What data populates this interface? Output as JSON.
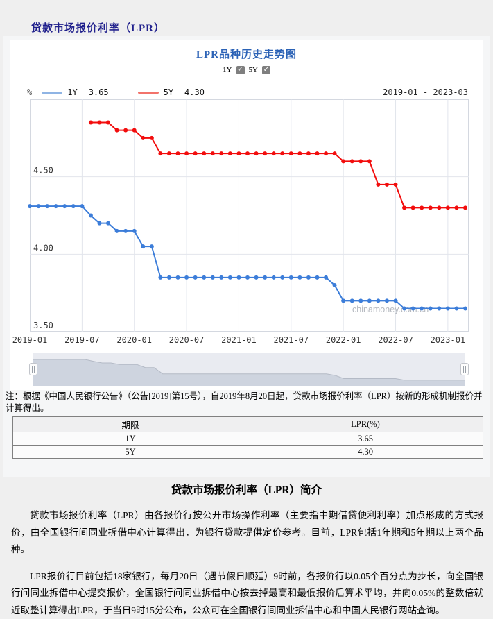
{
  "page": {
    "title": "贷款市场报价利率（LPR）"
  },
  "chart": {
    "title": "LPR品种历史走势图",
    "controls": [
      {
        "label": "1Y",
        "checked": true,
        "check_glyph": "✓"
      },
      {
        "label": "5Y",
        "checked": true,
        "check_glyph": "✓"
      }
    ],
    "unit_label": "%",
    "date_range": "2019-01 - 2023-03",
    "legend": [
      {
        "name": "1Y",
        "value": "3.65",
        "swatch_color": "#8FB4E4"
      },
      {
        "name": "5Y",
        "value": "4.30",
        "swatch_color": "#F2736B"
      }
    ],
    "watermark": "chinamoney.com.cn"
  },
  "chart_data": {
    "type": "line",
    "title": "LPR品种历史走势图",
    "x_unit": "month",
    "x_start": "2019-01",
    "x_end": "2023-03",
    "x_tick_labels": [
      "2019-01",
      "2019-07",
      "2020-01",
      "2020-07",
      "2021-01",
      "2021-07",
      "2022-01",
      "2022-07",
      "2023-01"
    ],
    "x_tick_month_index": [
      0,
      6,
      12,
      18,
      24,
      30,
      36,
      42,
      48
    ],
    "total_months": 51,
    "ylim": [
      3.5,
      5.0
    ],
    "y_tick_values": [
      3.5,
      4.0,
      4.5
    ],
    "y_tick_labels": [
      "3.50",
      "4.00",
      "4.50"
    ],
    "grid": true,
    "legend_position": "top-left",
    "series": [
      {
        "name": "1Y",
        "color": "#3C7DD9",
        "start_month_index": 0,
        "values": [
          4.31,
          4.31,
          4.31,
          4.31,
          4.31,
          4.31,
          4.31,
          4.25,
          4.2,
          4.2,
          4.15,
          4.15,
          4.15,
          4.05,
          4.05,
          3.85,
          3.85,
          3.85,
          3.85,
          3.85,
          3.85,
          3.85,
          3.85,
          3.85,
          3.85,
          3.85,
          3.85,
          3.85,
          3.85,
          3.85,
          3.85,
          3.85,
          3.85,
          3.85,
          3.85,
          3.8,
          3.7,
          3.7,
          3.7,
          3.7,
          3.7,
          3.7,
          3.7,
          3.65,
          3.65,
          3.65,
          3.65,
          3.65,
          3.65,
          3.65,
          3.65
        ]
      },
      {
        "name": "5Y",
        "color": "#F20D0D",
        "start_month_index": 7,
        "values": [
          4.85,
          4.85,
          4.85,
          4.8,
          4.8,
          4.8,
          4.75,
          4.75,
          4.65,
          4.65,
          4.65,
          4.65,
          4.65,
          4.65,
          4.65,
          4.65,
          4.65,
          4.65,
          4.65,
          4.65,
          4.65,
          4.65,
          4.65,
          4.65,
          4.65,
          4.65,
          4.65,
          4.65,
          4.65,
          4.6,
          4.6,
          4.6,
          4.6,
          4.45,
          4.45,
          4.45,
          4.3,
          4.3,
          4.3,
          4.3,
          4.3,
          4.3,
          4.3,
          4.3
        ]
      }
    ]
  },
  "note": "注：根据《中国人民银行公告》（公告[2019]第15号），自2019年8月20日起，贷款市场报价利率（LPR）按新的形成机制报价并计算得出。",
  "table": {
    "headers": [
      "期限",
      "LPR(%)"
    ],
    "rows": [
      [
        "1Y",
        "3.65"
      ],
      [
        "5Y",
        "4.30"
      ]
    ]
  },
  "intro": {
    "title": "贷款市场报价利率（LPR）简介",
    "paragraphs": [
      "贷款市场报价利率（LPR）由各报价行按公开市场操作利率（主要指中期借贷便利利率）加点形成的方式报价，由全国银行间同业拆借中心计算得出，为银行贷款提供定价参考。目前，LPR包括1年期和5年期以上两个品种。",
      "LPR报价行目前包括18家银行，每月20日（遇节假日顺延）9时前，各报价行以0.05个百分点为步长，向全国银行间同业拆借中心提交报价，全国银行间同业拆借中心按去掉最高和最低报价后算术平均，并向0.05%的整数倍就近取整计算得出LPR，于当日9时15分公布，公众可在全国银行间同业拆借中心和中国人民银行网站查询。"
    ]
  }
}
